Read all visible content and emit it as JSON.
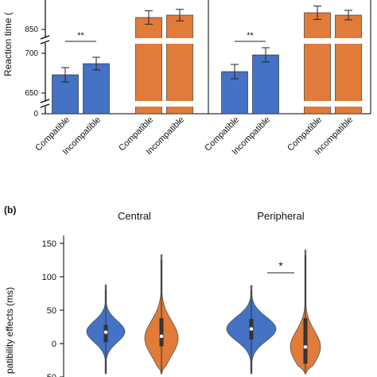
{
  "chart_data": [
    {
      "type": "bar",
      "ylabel": "Reaction time (",
      "yticks": [
        "650",
        "700",
        "850"
      ],
      "zero_tick": "0",
      "ybreaks": true,
      "panels": [
        {
          "bars": [
            {
              "label": "Compatible",
              "value": 673,
              "err": 9,
              "color": "#4472c4"
            },
            {
              "label": "Incompatible",
              "value": 687,
              "err": 8,
              "color": "#4472c4"
            },
            {
              "label": "Compatible",
              "value": 875,
              "err": 14,
              "color": "#e07b39"
            },
            {
              "label": "Incompatible",
              "value": 880,
              "err": 12,
              "color": "#e07b39"
            }
          ],
          "significance": [
            {
              "pair": [
                0,
                1
              ],
              "label": "**"
            }
          ]
        },
        {
          "bars": [
            {
              "label": "Compatible",
              "value": 677,
              "err": 9,
              "color": "#4472c4"
            },
            {
              "label": "Incompatible",
              "value": 698,
              "err": 9,
              "color": "#4472c4"
            },
            {
              "label": "Compatible",
              "value": 885,
              "err": 14,
              "color": "#e07b39"
            },
            {
              "label": "Incompatible",
              "value": 880,
              "err": 10,
              "color": "#e07b39"
            }
          ],
          "significance": [
            {
              "pair": [
                0,
                1
              ],
              "label": "**"
            }
          ]
        }
      ]
    },
    {
      "type": "violin",
      "panel_label": "(b)",
      "ylabel": "patibility effects (ms)",
      "ylim": [
        -50,
        150
      ],
      "yticks": [
        150,
        100,
        50,
        0,
        -50
      ],
      "groups": [
        {
          "title": "Central",
          "violins": [
            {
              "color": "#4472c4",
              "min": -45,
              "max": 88,
              "q1": 2,
              "q3": 28,
              "median": 17,
              "mode": 18,
              "maxwidth": 24,
              "spread": 16
            },
            {
              "color": "#e07b39",
              "min": -45,
              "max": 133,
              "q1": -4,
              "q3": 38,
              "median": 11,
              "mode": 8,
              "maxwidth": 21,
              "spread": 26
            }
          ]
        },
        {
          "title": "Peripheral",
          "violins": [
            {
              "color": "#4472c4",
              "min": -45,
              "max": 87,
              "q1": 6,
              "q3": 37,
              "median": 22,
              "mode": 22,
              "maxwidth": 31,
              "spread": 18
            },
            {
              "color": "#e07b39",
              "min": -45,
              "max": 140,
              "q1": -30,
              "q3": 38,
              "median": -5,
              "mode": -5,
              "maxwidth": 19,
              "spread": 24
            }
          ],
          "significance": {
            "label": "*"
          }
        }
      ]
    }
  ]
}
